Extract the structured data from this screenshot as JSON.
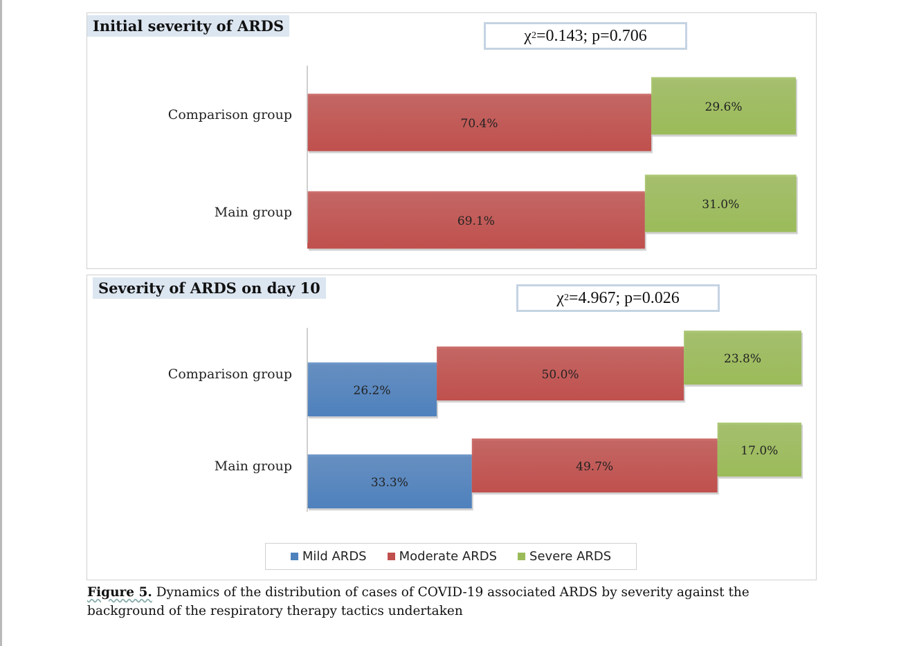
{
  "colors": {
    "mild": "#4f81bd",
    "moderate": "#c0504d",
    "severe": "#9bbb59"
  },
  "chart_data": [
    {
      "type": "bar",
      "orientation": "horizontal",
      "stacked": true,
      "title": "Initial severity of ARDS",
      "stat": {
        "chi_symbol": "χ",
        "chi_exp": "2",
        "rest": "=0.143; p=0.706"
      },
      "categories": [
        "Comparison group",
        "Main group"
      ],
      "series": [
        {
          "name": "Moderate ARDS",
          "color_key": "moderate",
          "values": [
            70.4,
            69.1
          ],
          "labels": [
            "70.4%",
            "69.1%"
          ]
        },
        {
          "name": "Severe ARDS",
          "color_key": "severe",
          "values": [
            29.6,
            31.0
          ],
          "labels": [
            "29.6%",
            "31.0%"
          ]
        }
      ],
      "xlim": [
        0,
        100
      ]
    },
    {
      "type": "bar",
      "orientation": "horizontal",
      "stacked": true,
      "title": "Severity of ARDS on day 10",
      "stat": {
        "chi_symbol": "χ",
        "chi_exp": "2",
        "rest": "=4.967; p=0.026"
      },
      "categories": [
        "Comparison group",
        "Main group"
      ],
      "series": [
        {
          "name": "Mild ARDS",
          "color_key": "mild",
          "values": [
            26.2,
            33.3
          ],
          "labels": [
            "26.2%",
            "33.3%"
          ]
        },
        {
          "name": "Moderate ARDS",
          "color_key": "moderate",
          "values": [
            50.0,
            49.7
          ],
          "labels": [
            "50.0%",
            "49.7%"
          ]
        },
        {
          "name": "Severe ARDS",
          "color_key": "severe",
          "values": [
            23.8,
            17.0
          ],
          "labels": [
            "23.8%",
            "17.0%"
          ]
        }
      ],
      "xlim": [
        0,
        100
      ]
    }
  ],
  "legend": [
    {
      "label": "Mild ARDS",
      "color_key": "mild"
    },
    {
      "label": "Moderate ARDS",
      "color_key": "moderate"
    },
    {
      "label": "Severe ARDS",
      "color_key": "severe"
    }
  ],
  "caption": {
    "label": "Figure 5.",
    "text": " Dynamics of the distribution of cases of COVID-19 associated ARDS by severity against the background of the respiratory therapy tactics undertaken"
  }
}
